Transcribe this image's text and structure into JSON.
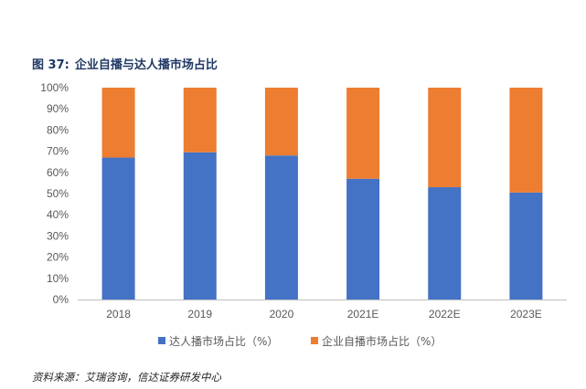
{
  "figure": {
    "label": "图 37:",
    "title": "企业自播与达人播市场占比"
  },
  "source": "资料来源：艾瑞咨询，信达证券研发中心",
  "colors": {
    "series1": "#4472c4",
    "series2": "#ed7d31",
    "axis": "#bfbfbf",
    "text": "#595959",
    "title": "#1f3864"
  },
  "chart_data": {
    "type": "bar",
    "stacked": true,
    "title": "企业自播与达人播市场占比",
    "categories": [
      "2018",
      "2019",
      "2020",
      "2021E",
      "2022E",
      "2023E"
    ],
    "series": [
      {
        "name": "达人播市场占比（%）",
        "values": [
          67,
          69.5,
          68,
          57,
          53,
          50.5
        ]
      },
      {
        "name": "企业自播市场占比（%）",
        "values": [
          33,
          30.5,
          32,
          43,
          47,
          49.5
        ]
      }
    ],
    "yticks": [
      "0%",
      "10%",
      "20%",
      "30%",
      "40%",
      "50%",
      "60%",
      "70%",
      "80%",
      "90%",
      "100%"
    ],
    "ylim": [
      0,
      100
    ],
    "xlabel": "",
    "ylabel": "",
    "legend_position": "bottom"
  }
}
